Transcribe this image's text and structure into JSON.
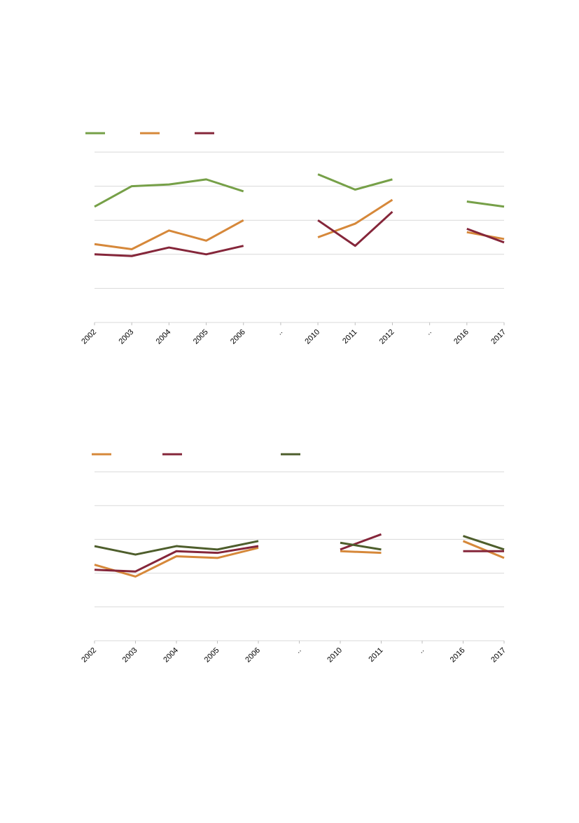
{
  "colors": {
    "green": "#76a048",
    "orange": "#d6883a",
    "maroon": "#85263a",
    "dark_green": "#4e5e2c",
    "grid": "#d9d9d9"
  },
  "chart_data": [
    {
      "type": "line",
      "categories": [
        "2002",
        "2003",
        "2004",
        "2005",
        "2006",
        "..",
        "2010",
        "2011",
        "2012",
        "..",
        "2016",
        "2017"
      ],
      "ylim": [
        0,
        5
      ],
      "grid": true,
      "legend_position": "top-left",
      "series": [
        {
          "color": "green",
          "values": [
            3.4,
            4.0,
            4.05,
            4.2,
            3.85,
            null,
            4.35,
            3.9,
            4.2,
            null,
            3.55,
            3.4
          ]
        },
        {
          "color": "orange",
          "values": [
            2.3,
            2.15,
            2.7,
            2.4,
            3.0,
            null,
            2.5,
            2.9,
            3.6,
            null,
            2.65,
            2.45
          ]
        },
        {
          "color": "maroon",
          "values": [
            2.0,
            1.95,
            2.2,
            2.0,
            2.25,
            null,
            3.0,
            2.25,
            3.25,
            null,
            2.75,
            2.35
          ]
        }
      ]
    },
    {
      "type": "line",
      "categories": [
        "2002",
        "2003",
        "2004",
        "2005",
        "2006",
        "..",
        "2010",
        "2011",
        "..",
        "2016",
        "2017"
      ],
      "ylim": [
        0,
        5
      ],
      "grid": true,
      "legend_position": "top-left",
      "series": [
        {
          "color": "orange",
          "values": [
            2.25,
            1.9,
            2.5,
            2.45,
            2.75,
            null,
            2.65,
            2.6,
            null,
            2.95,
            2.45
          ]
        },
        {
          "color": "maroon",
          "values": [
            2.1,
            2.05,
            2.65,
            2.6,
            2.8,
            null,
            2.7,
            3.15,
            null,
            2.65,
            2.65
          ]
        },
        {
          "color": "dark_green",
          "values": [
            2.8,
            2.55,
            2.8,
            2.7,
            2.95,
            null,
            2.9,
            2.7,
            null,
            3.1,
            2.7
          ]
        }
      ]
    }
  ]
}
